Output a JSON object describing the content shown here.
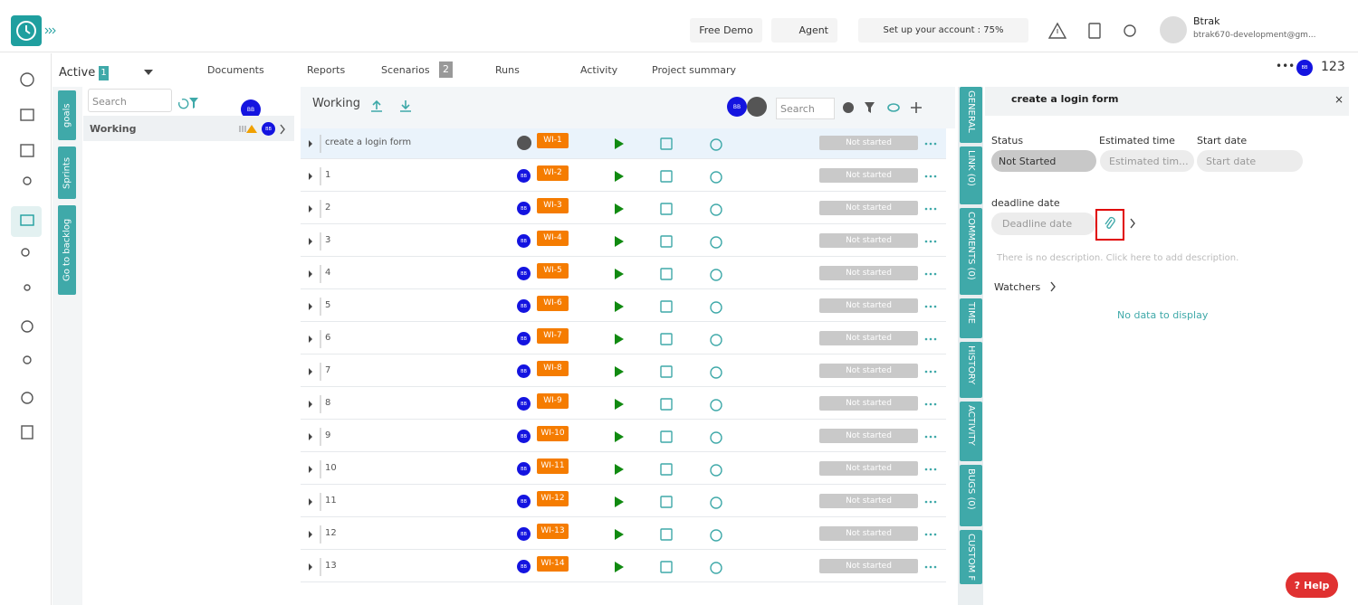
{
  "header": {
    "free_demo": "Free Demo",
    "agent": "Agent",
    "setup": "Set up your account : 75%",
    "user_name": "Btrak",
    "user_email": "btrak670-development@gm..."
  },
  "nav": {
    "active": "Active",
    "active_count": "1",
    "tabs": [
      "Documents",
      "Reports",
      "Scenarios",
      "Runs",
      "Activity",
      "Project summary"
    ],
    "scenarios_count": "2",
    "avatar": "BB",
    "count": "123"
  },
  "side_tabs": [
    "goals",
    "Sprints",
    "Go to backlog"
  ],
  "left_panel": {
    "search": "Search",
    "avatar": "BB",
    "item": "Working",
    "item_avatar": "BB"
  },
  "work_items": {
    "title": "Working",
    "avatar": "BB",
    "search": "Search",
    "rows": [
      {
        "name": "create a login form",
        "id": "WI-1",
        "status": "Not started"
      },
      {
        "name": "1",
        "avatar": "BB",
        "id": "WI-2",
        "status": "Not started"
      },
      {
        "name": "2",
        "avatar": "BB",
        "id": "WI-3",
        "status": "Not started"
      },
      {
        "name": "3",
        "avatar": "BB",
        "id": "WI-4",
        "status": "Not started"
      },
      {
        "name": "4",
        "avatar": "BB",
        "id": "WI-5",
        "status": "Not started"
      },
      {
        "name": "5",
        "avatar": "BB",
        "id": "WI-6",
        "status": "Not started"
      },
      {
        "name": "6",
        "avatar": "BB",
        "id": "WI-7",
        "status": "Not started"
      },
      {
        "name": "7",
        "avatar": "BB",
        "id": "WI-8",
        "status": "Not started"
      },
      {
        "name": "8",
        "avatar": "BB",
        "id": "WI-9",
        "status": "Not started"
      },
      {
        "name": "9",
        "avatar": "BB",
        "id": "WI-10",
        "status": "Not started"
      },
      {
        "name": "10",
        "avatar": "BB",
        "id": "WI-11",
        "status": "Not started"
      },
      {
        "name": "11",
        "avatar": "BB",
        "id": "WI-12",
        "status": "Not started"
      },
      {
        "name": "12",
        "avatar": "BB",
        "id": "WI-13",
        "status": "Not started"
      },
      {
        "name": "13",
        "avatar": "BB",
        "id": "WI-14",
        "status": "Not started"
      }
    ]
  },
  "detail": {
    "title": "create a login form",
    "tabs": [
      "GENERAL",
      "LINK (0)",
      "COMMENTS (0)",
      "TIME",
      "HISTORY",
      "ACTIVITY",
      "BUGS (0)",
      "CUSTOM F"
    ],
    "status_label": "Status",
    "status": "Not Started",
    "estimated_label": "Estimated time",
    "estimated": "Estimated tim...",
    "start_label": "Start date",
    "start": "Start date",
    "deadline_label": "deadline date",
    "deadline": "Deadline date",
    "description": "There is no description. Click here to add description.",
    "watchers": "Watchers",
    "empty": "No data to display"
  },
  "help": "Help"
}
